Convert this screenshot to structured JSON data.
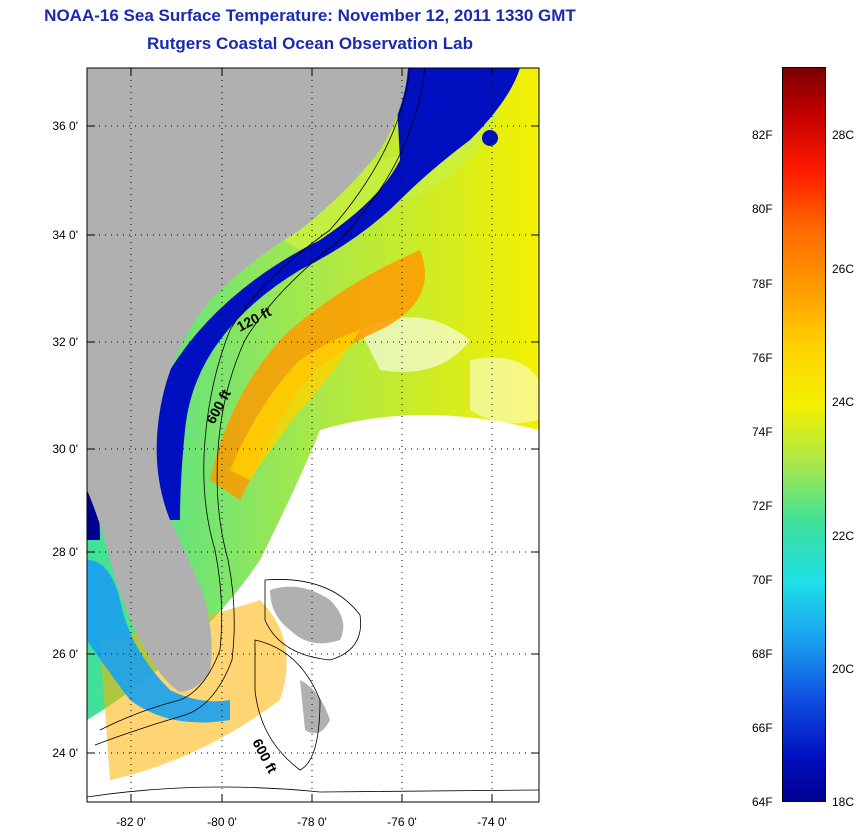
{
  "header": {
    "title": "NOAA-16 Sea Surface Temperature:  November 12, 2011 1330 GMT",
    "subtitle": "Rutgers Coastal Ocean Observation Lab"
  },
  "map": {
    "lat_labels": [
      "36 0'",
      "34 0'",
      "32 0'",
      "30 0'",
      "28 0'",
      "26 0'",
      "24 0'"
    ],
    "lon_labels": [
      "-82 0'",
      "-80 0'",
      "-78 0'",
      "-76 0'",
      "-74 0'"
    ],
    "contour_labels": [
      "120 ft",
      "600 ft",
      "600 ft"
    ],
    "colors": {
      "land": "#b0b0b0",
      "cloud": "#ffffff",
      "cold": "#000090",
      "warm": "#ff9a00"
    }
  },
  "colorbar": {
    "fahrenheit_labels": [
      "82F",
      "80F",
      "78F",
      "76F",
      "74F",
      "72F",
      "70F",
      "68F",
      "66F",
      "64F"
    ],
    "celsius_labels": [
      "28C",
      "26C",
      "24C",
      "22C",
      "20C",
      "18C"
    ]
  }
}
